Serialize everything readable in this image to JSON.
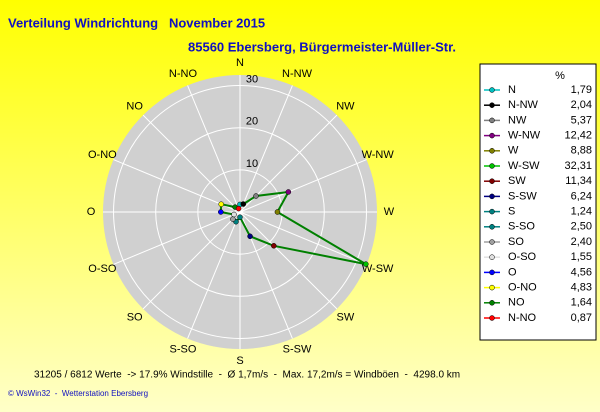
{
  "chart_data": {
    "type": "windrose",
    "title": "Verteilung Windrichtung   November 2015",
    "subtitle": "85560 Ebersberg, Bürgermeister-Müller-Str.",
    "legend_header": "%",
    "categories": [
      "N",
      "N-NW",
      "NW",
      "W-NW",
      "W",
      "W-SW",
      "SW",
      "S-SW",
      "S",
      "S-SO",
      "SO",
      "O-SO",
      "O",
      "O-NO",
      "NO",
      "N-NO"
    ],
    "values": [
      1.79,
      2.04,
      5.37,
      12.42,
      8.88,
      32.31,
      11.34,
      6.24,
      1.24,
      2.5,
      2.4,
      1.55,
      4.56,
      4.83,
      1.64,
      0.87
    ],
    "value_labels": [
      "1,79",
      "2,04",
      "5,37",
      "12,42",
      "8,88",
      "32,31",
      "11,34",
      "6,24",
      "1,24",
      "2,50",
      "2,40",
      "1,55",
      "4,56",
      "4,83",
      "1,64",
      "0,87"
    ],
    "colors": [
      "#00c0c0",
      "#000000",
      "#808080",
      "#800080",
      "#808000",
      "#00c000",
      "#800000",
      "#000080",
      "#008080",
      "#008080",
      "#a0a0a0",
      "#e0e0e0",
      "#0000ff",
      "#ffff00",
      "#008000",
      "#ff0000"
    ],
    "line_color": "#008000",
    "rlim": [
      0,
      32.5
    ],
    "rticks": [
      10,
      20,
      30
    ],
    "grid": true,
    "footer": "31205 / 6812 Werte  -> 17.9% Windstille  -  Ø 1,7m/s  -  Max. 17,2m/s = Windböen  -  4298.0 km",
    "copyright": "© WsWin32  -  Wetterstation Ebersberg"
  }
}
